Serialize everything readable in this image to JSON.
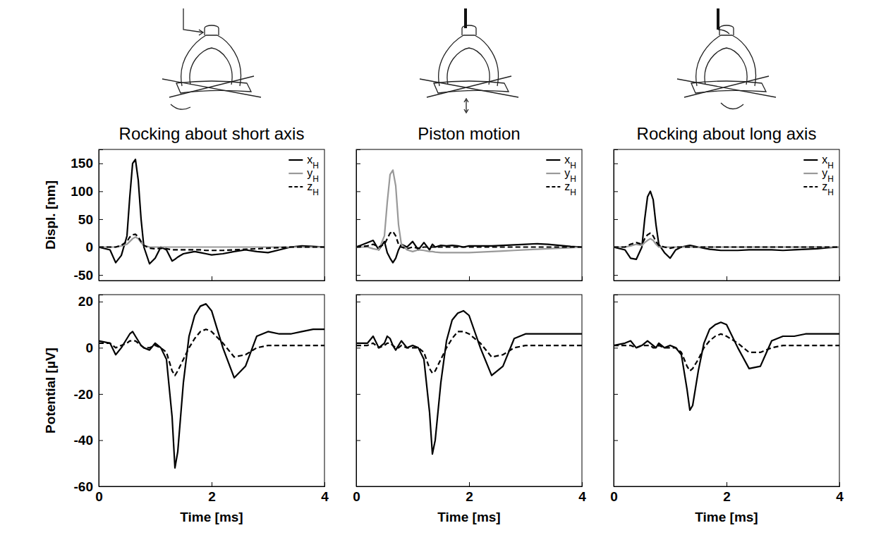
{
  "chart_data": [
    {
      "type": "line",
      "title": "Rocking about short axis",
      "ylabel": "Displ. [nm]",
      "x": [
        0,
        0.2,
        0.3,
        0.4,
        0.5,
        0.55,
        0.6,
        0.65,
        0.7,
        0.75,
        0.8,
        0.9,
        1.0,
        1.1,
        1.2,
        1.3,
        1.35,
        1.4,
        1.5,
        1.6,
        1.7,
        1.8,
        1.9,
        2.0,
        2.2,
        2.4,
        2.6,
        2.8,
        3.0,
        3.2,
        3.4,
        3.6,
        3.8,
        4.0
      ],
      "xlim": [
        0,
        4
      ],
      "xticks": [
        0,
        2,
        4
      ],
      "ylim": [
        -60,
        175
      ],
      "yticks": [
        -50,
        0,
        50,
        100,
        150
      ],
      "tick_labels": "y",
      "legend": "upper right",
      "series": [
        {
          "name": "xH",
          "color": "#000000",
          "line_style": "solid",
          "values": [
            0,
            -5,
            -28,
            -15,
            20,
            90,
            150,
            157,
            120,
            50,
            0,
            -30,
            -20,
            0,
            -5,
            -25,
            -22,
            -18,
            -12,
            -10,
            -8,
            -10,
            -12,
            -14,
            -12,
            -8,
            -5,
            -8,
            -10,
            -5,
            0,
            2,
            1,
            0
          ]
        },
        {
          "name": "yH",
          "color": "#999999",
          "line_style": "solid",
          "values": [
            0,
            0,
            0,
            2,
            5,
            10,
            15,
            18,
            15,
            8,
            3,
            0,
            0,
            0,
            0,
            0,
            0,
            0,
            0,
            0,
            0,
            0,
            0,
            0,
            0,
            0,
            0,
            0,
            0,
            0,
            0,
            0,
            0,
            0
          ]
        },
        {
          "name": "zH",
          "color": "#000000",
          "line_style": "dashed",
          "values": [
            0,
            0,
            0,
            3,
            10,
            18,
            22,
            23,
            18,
            10,
            3,
            -2,
            -3,
            -2,
            -3,
            -5,
            -5,
            -5,
            -5,
            -5,
            -5,
            -5,
            -6,
            -6,
            -6,
            -5,
            -4,
            -3,
            -2,
            -1,
            0,
            0,
            0,
            0
          ]
        }
      ]
    },
    {
      "type": "line",
      "title": "Piston motion",
      "x": [
        0,
        0.2,
        0.3,
        0.4,
        0.5,
        0.55,
        0.6,
        0.65,
        0.7,
        0.75,
        0.8,
        0.9,
        1.0,
        1.1,
        1.2,
        1.3,
        1.35,
        1.4,
        1.5,
        1.6,
        1.7,
        1.8,
        1.9,
        2.0,
        2.2,
        2.4,
        2.6,
        2.8,
        3.0,
        3.2,
        3.4,
        3.6,
        3.8,
        4.0
      ],
      "xlim": [
        0,
        4
      ],
      "xticks": [
        0,
        2,
        4
      ],
      "ylim": [
        -60,
        175
      ],
      "yticks": [
        -50,
        0,
        50,
        100,
        150
      ],
      "tick_labels": false,
      "legend": "upper right",
      "series": [
        {
          "name": "xH",
          "color": "#000000",
          "line_style": "solid",
          "values": [
            0,
            8,
            12,
            -5,
            10,
            -10,
            -20,
            -28,
            -20,
            -5,
            5,
            0,
            10,
            -5,
            8,
            -5,
            5,
            0,
            3,
            2,
            3,
            2,
            0,
            2,
            2,
            2,
            3,
            4,
            5,
            6,
            5,
            3,
            1,
            0
          ]
        },
        {
          "name": "yH",
          "color": "#999999",
          "line_style": "solid",
          "values": [
            0,
            0,
            -3,
            -5,
            20,
            80,
            130,
            138,
            110,
            40,
            5,
            -5,
            -8,
            -5,
            -6,
            -8,
            -8,
            -9,
            -10,
            -10,
            -10,
            -10,
            -10,
            -10,
            -9,
            -8,
            -7,
            -6,
            -5,
            -4,
            -3,
            -2,
            -1,
            0
          ]
        },
        {
          "name": "zH",
          "color": "#000000",
          "line_style": "dashed",
          "values": [
            0,
            2,
            5,
            0,
            5,
            15,
            25,
            28,
            20,
            5,
            0,
            -3,
            0,
            -2,
            0,
            0,
            0,
            0,
            0,
            0,
            0,
            0,
            0,
            0,
            0,
            0,
            0,
            0,
            0,
            0,
            0,
            0,
            0,
            0
          ]
        }
      ]
    },
    {
      "type": "line",
      "title": "Rocking about long axis",
      "x": [
        0,
        0.2,
        0.3,
        0.4,
        0.5,
        0.55,
        0.6,
        0.65,
        0.7,
        0.75,
        0.8,
        0.9,
        1.0,
        1.1,
        1.2,
        1.3,
        1.35,
        1.4,
        1.5,
        1.6,
        1.7,
        1.8,
        1.9,
        2.0,
        2.2,
        2.4,
        2.6,
        2.8,
        3.0,
        3.2,
        3.4,
        3.6,
        3.8,
        4.0
      ],
      "xlim": [
        0,
        4
      ],
      "xticks": [
        0,
        2,
        4
      ],
      "ylim": [
        -60,
        175
      ],
      "yticks": [
        -50,
        0,
        50,
        100,
        150
      ],
      "tick_labels": false,
      "legend": "upper right",
      "series": [
        {
          "name": "xH",
          "color": "#000000",
          "line_style": "solid",
          "values": [
            0,
            -5,
            -20,
            -22,
            0,
            50,
            90,
            100,
            85,
            40,
            5,
            -10,
            -20,
            -5,
            0,
            2,
            3,
            2,
            0,
            -2,
            -4,
            -5,
            -6,
            -6,
            -6,
            -5,
            -5,
            -5,
            -6,
            -5,
            -4,
            -3,
            -1,
            0
          ]
        },
        {
          "name": "yH",
          "color": "#999999",
          "line_style": "solid",
          "values": [
            0,
            0,
            2,
            5,
            3,
            8,
            12,
            15,
            12,
            5,
            0,
            0,
            0,
            0,
            0,
            0,
            0,
            0,
            0,
            0,
            0,
            0,
            0,
            0,
            0,
            0,
            0,
            0,
            0,
            0,
            0,
            0,
            0,
            0
          ]
        },
        {
          "name": "zH",
          "color": "#000000",
          "line_style": "dashed",
          "values": [
            0,
            0,
            5,
            8,
            5,
            15,
            22,
            25,
            20,
            10,
            3,
            0,
            -2,
            0,
            0,
            0,
            0,
            0,
            0,
            0,
            0,
            0,
            0,
            0,
            0,
            0,
            0,
            0,
            0,
            0,
            0,
            0,
            0,
            0
          ]
        }
      ]
    },
    {
      "type": "line",
      "ylabel": "Potential [µV]",
      "xlabel": "Time [ms]",
      "x": [
        0,
        0.2,
        0.3,
        0.4,
        0.5,
        0.55,
        0.6,
        0.65,
        0.7,
        0.75,
        0.8,
        0.9,
        1.0,
        1.1,
        1.2,
        1.3,
        1.35,
        1.4,
        1.5,
        1.6,
        1.7,
        1.8,
        1.9,
        2.0,
        2.2,
        2.4,
        2.6,
        2.8,
        3.0,
        3.2,
        3.4,
        3.6,
        3.8,
        4.0
      ],
      "xlim": [
        0,
        4
      ],
      "xticks": [
        0,
        2,
        4
      ],
      "ylim": [
        -60,
        23
      ],
      "yticks": [
        -60,
        -40,
        -20,
        0,
        20
      ],
      "series": [
        {
          "color": "#000000",
          "line_style": "solid",
          "values": [
            3,
            2,
            -3,
            0,
            4,
            6,
            7,
            5,
            3,
            1,
            0,
            -1,
            2,
            0,
            -5,
            -30,
            -52,
            -45,
            -15,
            5,
            14,
            18,
            19,
            16,
            0,
            -13,
            -8,
            5,
            7,
            6,
            6,
            7,
            8,
            8
          ]
        },
        {
          "color": "#000000",
          "line_style": "dashed",
          "values": [
            2,
            2,
            0,
            1,
            2,
            3,
            3,
            3,
            2,
            1,
            0,
            0,
            1,
            0,
            -2,
            -10,
            -12,
            -10,
            -5,
            0,
            4,
            7,
            8,
            7,
            2,
            -4,
            -3,
            0,
            1,
            1,
            1,
            1,
            1,
            1
          ]
        }
      ]
    },
    {
      "type": "line",
      "xlabel": "Time [ms]",
      "x": [
        0,
        0.2,
        0.3,
        0.4,
        0.5,
        0.55,
        0.6,
        0.65,
        0.7,
        0.75,
        0.8,
        0.9,
        1.0,
        1.1,
        1.2,
        1.3,
        1.35,
        1.4,
        1.5,
        1.6,
        1.7,
        1.8,
        1.9,
        2.0,
        2.2,
        2.4,
        2.6,
        2.8,
        3.0,
        3.2,
        3.4,
        3.6,
        3.8,
        4.0
      ],
      "xlim": [
        0,
        4
      ],
      "xticks": [
        0,
        2,
        4
      ],
      "ylim": [
        -60,
        23
      ],
      "yticks": [
        -60,
        -40,
        -20,
        0,
        20
      ],
      "tick_labels": "x",
      "series": [
        {
          "color": "#000000",
          "line_style": "solid",
          "values": [
            2,
            2,
            5,
            0,
            2,
            5,
            4,
            1,
            -1,
            1,
            3,
            0,
            1,
            0,
            -5,
            -28,
            -46,
            -40,
            -15,
            3,
            12,
            15,
            16,
            14,
            0,
            -12,
            -8,
            4,
            6,
            6,
            6,
            6,
            6,
            6
          ]
        },
        {
          "color": "#000000",
          "line_style": "dashed",
          "values": [
            1,
            1,
            2,
            0,
            1,
            2,
            2,
            1,
            0,
            0,
            1,
            0,
            0,
            0,
            -2,
            -9,
            -11,
            -10,
            -5,
            0,
            4,
            7,
            7,
            6,
            2,
            -4,
            -3,
            0,
            1,
            1,
            1,
            1,
            1,
            1
          ]
        }
      ]
    },
    {
      "type": "line",
      "xlabel": "Time [ms]",
      "x": [
        0,
        0.2,
        0.3,
        0.4,
        0.5,
        0.55,
        0.6,
        0.65,
        0.7,
        0.75,
        0.8,
        0.9,
        1.0,
        1.1,
        1.2,
        1.3,
        1.35,
        1.4,
        1.5,
        1.6,
        1.7,
        1.8,
        1.9,
        2.0,
        2.2,
        2.4,
        2.6,
        2.8,
        3.0,
        3.2,
        3.4,
        3.6,
        3.8,
        4.0
      ],
      "xlim": [
        0,
        4
      ],
      "xticks": [
        0,
        2,
        4
      ],
      "ylim": [
        -60,
        23
      ],
      "yticks": [
        -60,
        -40,
        -20,
        0,
        20
      ],
      "tick_labels": "x",
      "series": [
        {
          "color": "#000000",
          "line_style": "solid",
          "values": [
            1,
            2,
            3,
            0,
            1,
            2,
            3,
            2,
            1,
            0,
            2,
            0,
            1,
            0,
            -3,
            -18,
            -27,
            -25,
            -10,
            2,
            8,
            10,
            11,
            10,
            0,
            -9,
            -8,
            3,
            5,
            5,
            6,
            6,
            6,
            6
          ]
        },
        {
          "color": "#000000",
          "line_style": "dashed",
          "values": [
            1,
            1,
            1,
            0,
            1,
            1,
            1,
            1,
            0,
            0,
            1,
            0,
            0,
            0,
            -2,
            -8,
            -10,
            -9,
            -5,
            0,
            3,
            5,
            6,
            5,
            2,
            -2,
            -2,
            0,
            1,
            1,
            1,
            1,
            1,
            1
          ]
        }
      ]
    }
  ]
}
